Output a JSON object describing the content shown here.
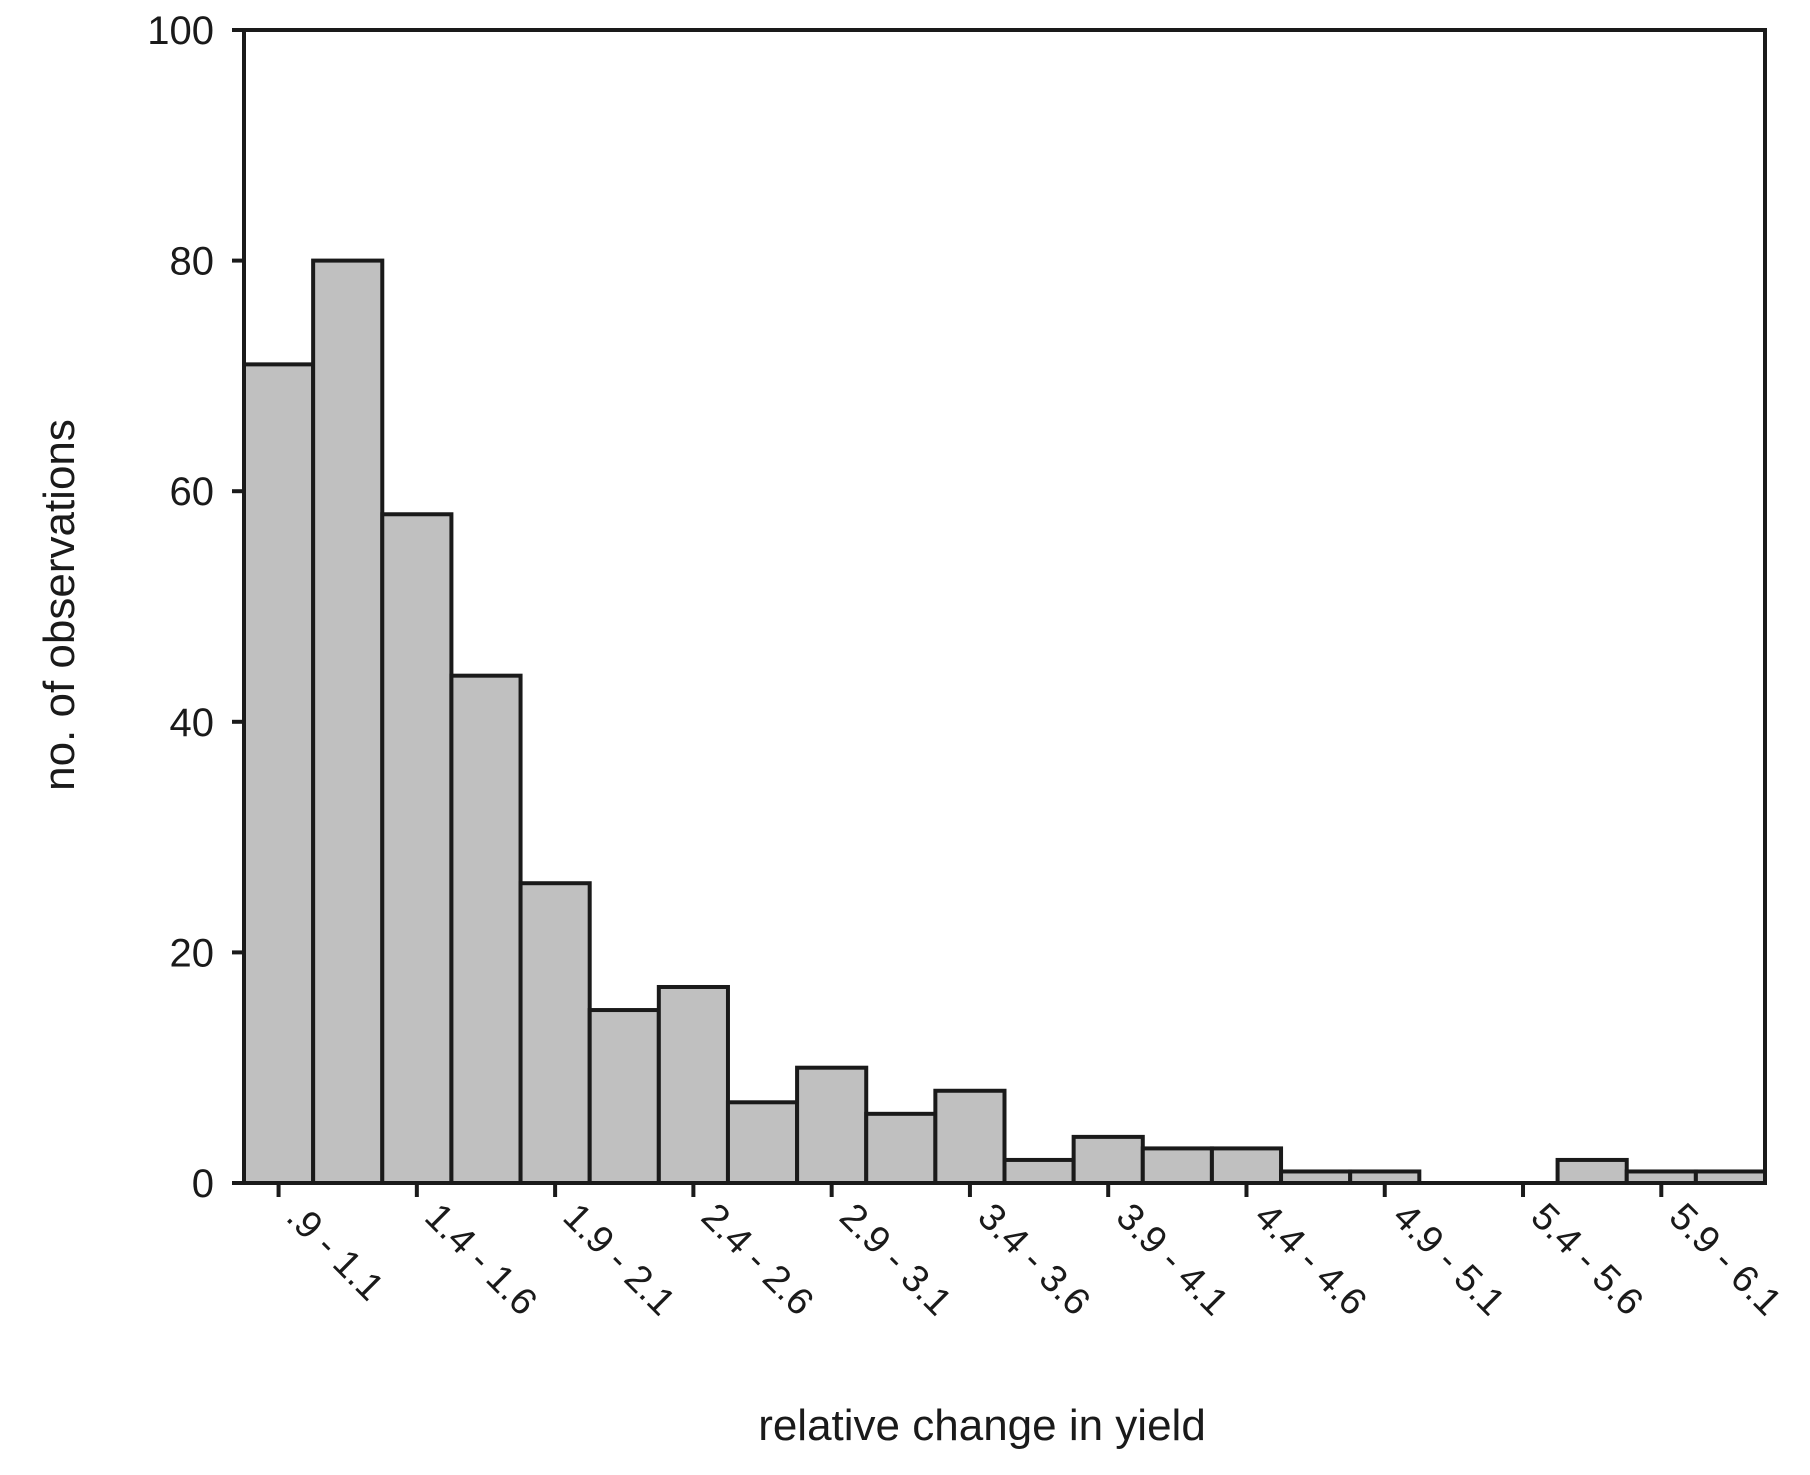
{
  "chart_data": {
    "type": "bar",
    "title": "",
    "xlabel": "relative change in yield",
    "ylabel": "no. of observations",
    "ylim": [
      0,
      100
    ],
    "yticks": [
      0,
      20,
      40,
      60,
      80,
      100
    ],
    "grid": false,
    "bar_color": "#c0c0c0",
    "edge_color": "#1a1a1a",
    "bins": [
      ".9 - 1.1",
      "",
      "1.4 - 1.6",
      "",
      "1.9 - 2.1",
      "",
      "2.4 - 2.6",
      "",
      "2.9 - 3.1",
      "",
      "3.4 - 3.6",
      "",
      "3.9 - 4.1",
      "",
      "4.4 - 4.6",
      "",
      "4.9 - 5.1",
      "",
      "5.4 - 5.6",
      "",
      "5.9 - 6.1",
      ""
    ],
    "tick_labels": [
      ".9 - 1.1",
      "1.4 - 1.6",
      "1.9 - 2.1",
      "2.4 - 2.6",
      "2.9 - 3.1",
      "3.4 - 3.6",
      "3.9 - 4.1",
      "4.4 - 4.6",
      "4.9 - 5.1",
      "5.4 - 5.6",
      "5.9 - 6.1"
    ],
    "values": [
      71,
      80,
      58,
      44,
      26,
      15,
      17,
      7,
      10,
      6,
      8,
      2,
      4,
      3,
      3,
      1,
      1,
      0,
      0,
      2,
      1,
      1
    ]
  }
}
